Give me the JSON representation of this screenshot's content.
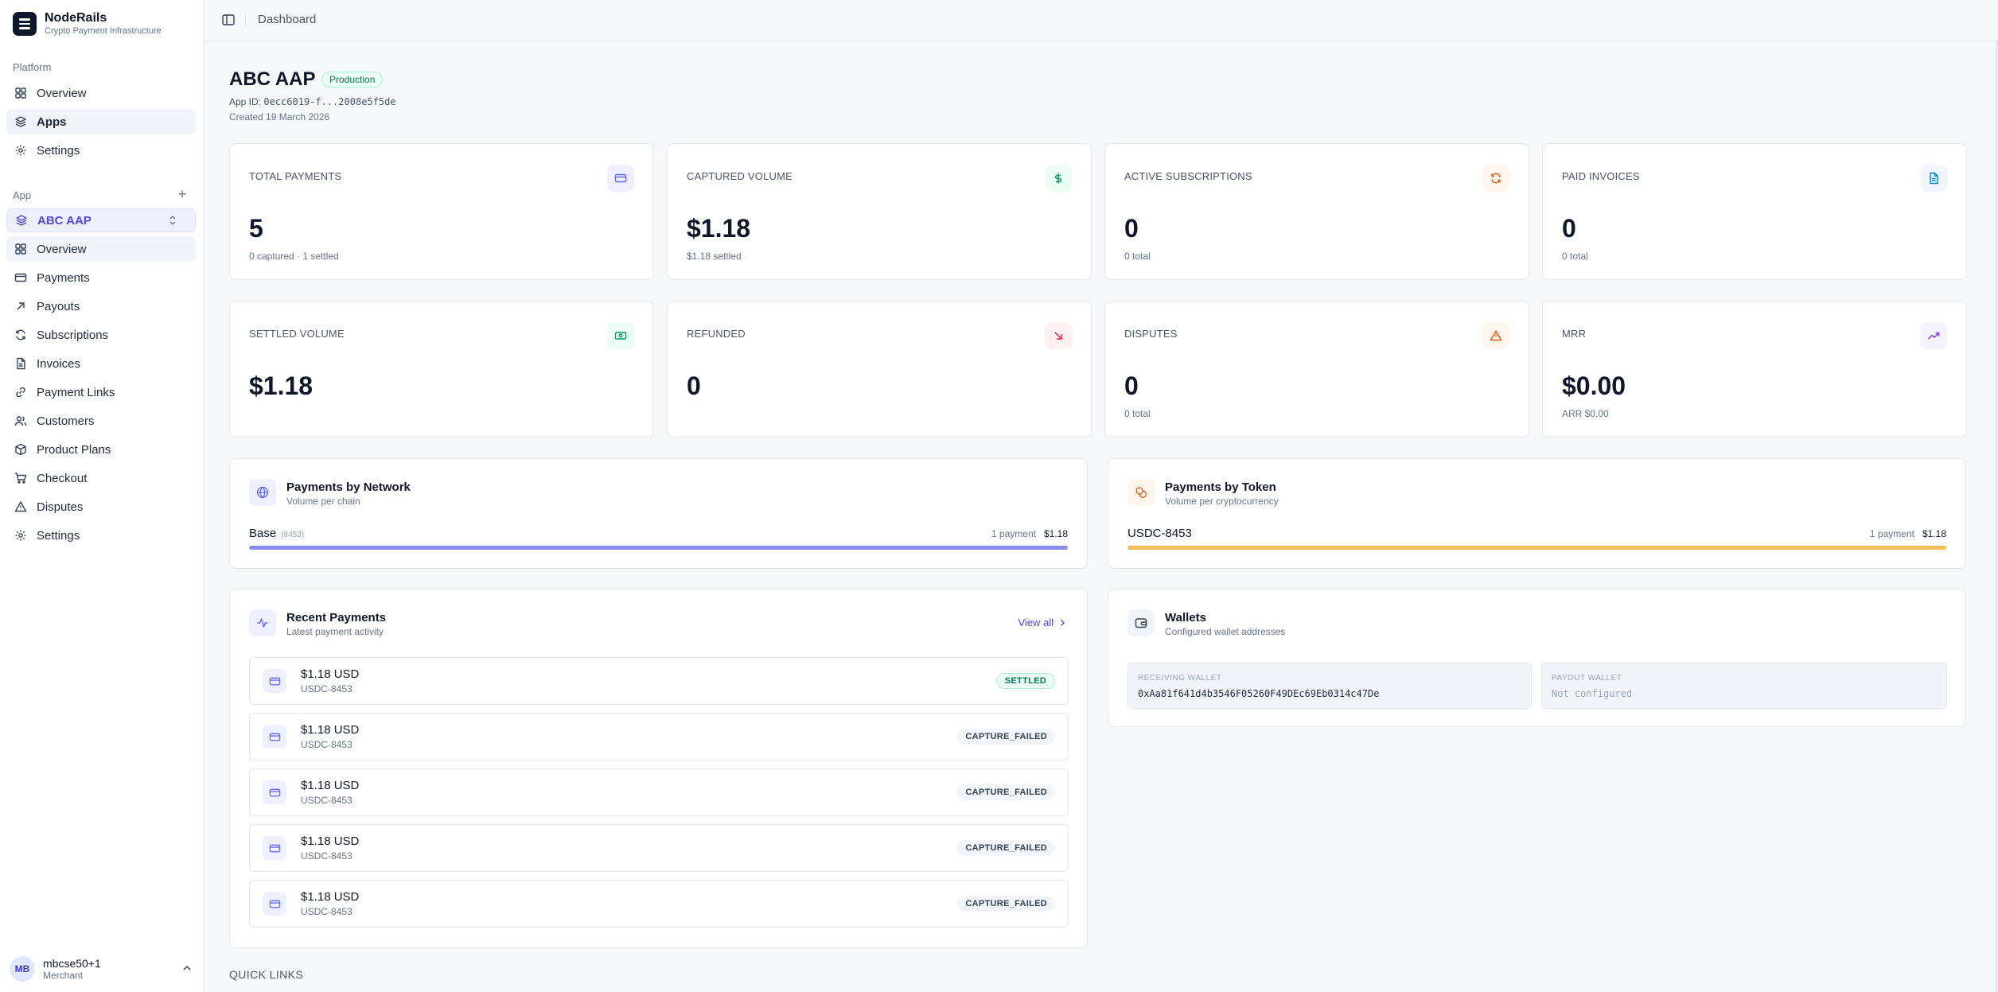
{
  "brand": {
    "name": "NodeRails",
    "tagline": "Crypto Payment Infrastructure"
  },
  "sidebar": {
    "platform_label": "Platform",
    "platform_items": [
      {
        "label": "Overview",
        "icon": "grid-icon"
      },
      {
        "label": "Apps",
        "icon": "layers-icon"
      },
      {
        "label": "Settings",
        "icon": "gear-icon"
      }
    ],
    "app_label": "App",
    "selected_app": "ABC AAP",
    "app_items": [
      {
        "label": "Overview",
        "icon": "grid-icon"
      },
      {
        "label": "Payments",
        "icon": "card-icon"
      },
      {
        "label": "Payouts",
        "icon": "arrow-up-right-icon"
      },
      {
        "label": "Subscriptions",
        "icon": "refresh-icon"
      },
      {
        "label": "Invoices",
        "icon": "document-icon"
      },
      {
        "label": "Payment Links",
        "icon": "link-icon"
      },
      {
        "label": "Customers",
        "icon": "users-icon"
      },
      {
        "label": "Product Plans",
        "icon": "package-icon"
      },
      {
        "label": "Checkout",
        "icon": "cart-icon"
      },
      {
        "label": "Disputes",
        "icon": "warning-icon"
      },
      {
        "label": "Settings",
        "icon": "gear-icon"
      }
    ],
    "user": {
      "initials": "MB",
      "name": "mbcse50+1",
      "role": "Merchant"
    }
  },
  "topbar": {
    "title": "Dashboard"
  },
  "header": {
    "title": "ABC AAP",
    "badge": "Production",
    "app_id_label": "App ID:",
    "app_id": "0ecc6019-f...2008e5f5de",
    "created": "Created 19 March 2026"
  },
  "stats": [
    {
      "label": "TOTAL PAYMENTS",
      "value": "5",
      "sub": "0 captured · 1 settled",
      "icon": "card-icon",
      "color": "#6366f1",
      "bg": "#eef0ff"
    },
    {
      "label": "CAPTURED VOLUME",
      "value": "$1.18",
      "sub": "$1.18 settled",
      "icon": "dollar-icon",
      "color": "#059669",
      "bg": "#ecfdf5"
    },
    {
      "label": "ACTIVE SUBSCRIPTIONS",
      "value": "0",
      "sub": "0 total",
      "icon": "refresh-icon",
      "color": "#ea580c",
      "bg": "#fff7ed"
    },
    {
      "label": "PAID INVOICES",
      "value": "0",
      "sub": "0 total",
      "icon": "document-icon",
      "color": "#0284c7",
      "bg": "#eff6ff"
    },
    {
      "label": "SETTLED VOLUME",
      "value": "$1.18",
      "sub": "",
      "icon": "banknote-icon",
      "color": "#059669",
      "bg": "#ecfdf5"
    },
    {
      "label": "REFUNDED",
      "value": "0",
      "sub": "",
      "icon": "arrow-down-right-icon",
      "color": "#e11d48",
      "bg": "#fff1f2"
    },
    {
      "label": "DISPUTES",
      "value": "0",
      "sub": "0 total",
      "icon": "warning-icon",
      "color": "#ea580c",
      "bg": "#fff7ed"
    },
    {
      "label": "MRR",
      "value": "$0.00",
      "sub": "ARR $0.00",
      "icon": "trend-up-icon",
      "color": "#7c3aed",
      "bg": "#f5f3ff"
    }
  ],
  "network_panel": {
    "title": "Payments by Network",
    "subtitle": "Volume per chain",
    "icon": "globe-icon",
    "row": {
      "name": "Base",
      "id": "(8453)",
      "count": "1 payment",
      "amount": "$1.18",
      "share": 1.0,
      "color": "#8b8cf0"
    }
  },
  "token_panel": {
    "title": "Payments by Token",
    "subtitle": "Volume per cryptocurrency",
    "icon": "coins-icon",
    "row": {
      "name": "USDC-8453",
      "count": "1 payment",
      "amount": "$1.18",
      "share": 1.0,
      "color": "#f2bf55"
    }
  },
  "recent": {
    "title": "Recent Payments",
    "subtitle": "Latest payment activity",
    "view_all": "View all",
    "icon": "activity-icon",
    "rows": [
      {
        "amount": "$1.18 USD",
        "token": "USDC-8453",
        "status": "SETTLED",
        "kind": "settled"
      },
      {
        "amount": "$1.18 USD",
        "token": "USDC-8453",
        "status": "CAPTURE_FAILED",
        "kind": "failed"
      },
      {
        "amount": "$1.18 USD",
        "token": "USDC-8453",
        "status": "CAPTURE_FAILED",
        "kind": "failed"
      },
      {
        "amount": "$1.18 USD",
        "token": "USDC-8453",
        "status": "CAPTURE_FAILED",
        "kind": "failed"
      },
      {
        "amount": "$1.18 USD",
        "token": "USDC-8453",
        "status": "CAPTURE_FAILED",
        "kind": "failed"
      }
    ]
  },
  "wallets": {
    "title": "Wallets",
    "subtitle": "Configured wallet addresses",
    "icon": "wallet-icon",
    "receiving_label": "RECEIVING WALLET",
    "receiving_value": "0xAa81f641d4b3546F05260F49DEc69Eb0314c47De",
    "payout_label": "PAYOUT WALLET",
    "payout_value": "Not configured"
  },
  "quick_links": "QUICK LINKS"
}
